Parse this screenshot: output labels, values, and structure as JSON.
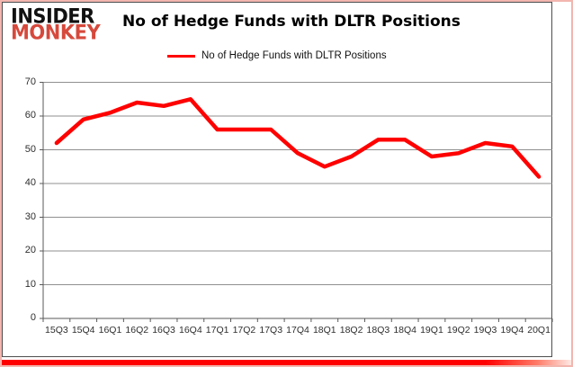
{
  "header": {
    "logo_line1": "INSIDER",
    "logo_line2": "MONKEY",
    "title": "No of Hedge Funds with DLTR Positions"
  },
  "legend": {
    "label": "No of Hedge Funds with DLTR Positions"
  },
  "colors": {
    "logo_red": "#d6493c",
    "line_red": "#ff0000",
    "grid_gray": "#8f8f8f",
    "axis_gray": "#595959",
    "frame_pink": "#f2b6ae",
    "bottom_bar_red": "#fe0000",
    "text_dark": "#2e2e2e"
  },
  "chart_data": {
    "type": "line",
    "title": "No of Hedge Funds with DLTR Positions",
    "categories": [
      "15Q3",
      "15Q4",
      "16Q1",
      "16Q2",
      "16Q3",
      "16Q4",
      "17Q1",
      "17Q2",
      "17Q3",
      "17Q4",
      "18Q1",
      "18Q2",
      "18Q3",
      "18Q4",
      "19Q1",
      "19Q2",
      "19Q3",
      "19Q4",
      "20Q1"
    ],
    "series": [
      {
        "name": "No of Hedge Funds with DLTR Positions",
        "values": [
          52,
          59,
          61,
          64,
          63,
          65,
          56,
          56,
          56,
          49,
          45,
          48,
          53,
          53,
          48,
          49,
          52,
          51,
          42
        ]
      }
    ],
    "xlabel": "",
    "ylabel": "",
    "ylim": [
      0,
      70
    ],
    "y_ticks": [
      0,
      10,
      20,
      30,
      40,
      50,
      60,
      70
    ],
    "grid": true,
    "legend_position": "top-center"
  }
}
